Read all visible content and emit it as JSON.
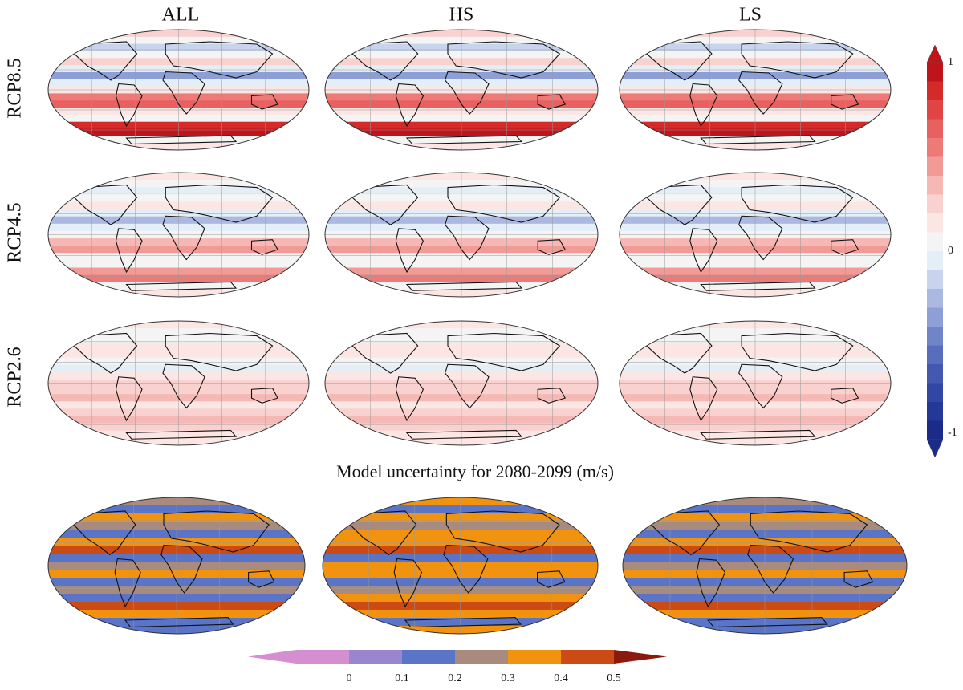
{
  "columns": [
    "ALL",
    "HS",
    "LS"
  ],
  "rows": [
    "RCP8.5",
    "RCP4.5",
    "RCP2.6"
  ],
  "uncertainty_title": "Model uncertainty for 2080-2099 (m/s)",
  "change_colorbar": {
    "ticks": [
      1,
      0,
      -1
    ],
    "colors": [
      "#c0141c",
      "#d42a2a",
      "#e04444",
      "#e86060",
      "#ee7a78",
      "#f29a96",
      "#f6b8b4",
      "#f9d2cf",
      "#fbe6e4",
      "#f4f4f4",
      "#e4eef6",
      "#c8d4ee",
      "#aab8e2",
      "#8e9ed6",
      "#7284c8",
      "#5a6cbc",
      "#4458b0",
      "#3246a4",
      "#243898",
      "#1a2c88"
    ]
  },
  "uncertainty_colorbar": {
    "ticks": [
      0,
      0.1,
      0.2,
      0.3,
      0.4,
      0.5
    ],
    "colors": [
      "#d58fd0",
      "#9a85cf",
      "#5a74c8",
      "#a88a7e",
      "#f2930f",
      "#cc4a14",
      "#8c1a0c"
    ]
  }
}
